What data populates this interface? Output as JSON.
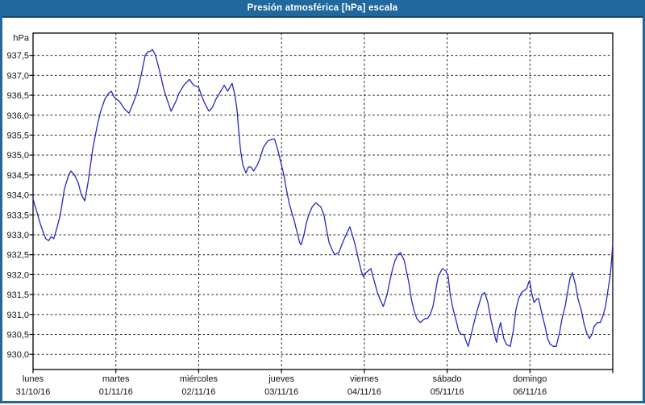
{
  "window": {
    "title": "Presión atmosférica [hPa] escala"
  },
  "colors": {
    "titlebar_bg": "#20689E",
    "titlebar_underline": "#14466B",
    "window_border": "#20689E",
    "plot_bg": "#ffffff",
    "axis": "#000000",
    "grid": "#1c1c1c",
    "series_line": "#2626C3",
    "label_text": "#111111"
  },
  "chart_data": {
    "type": "line",
    "title": "Presión atmosférica [hPa] escala",
    "ylabel": "hPa",
    "grid": "dashed",
    "legend_position": "none",
    "y_axis": {
      "unit": "hPa",
      "tick_values": [
        937.5,
        937.0,
        936.5,
        936.0,
        935.5,
        935.0,
        934.5,
        934.0,
        933.5,
        933.0,
        932.5,
        932.0,
        931.5,
        931.0,
        930.5,
        930.0
      ],
      "tick_labels": [
        "937,5",
        "937,0",
        "936,5",
        "936,0",
        "935,5",
        "935,0",
        "934,5",
        "934,0",
        "933,5",
        "933,0",
        "932,5",
        "932,0",
        "931,5",
        "931,0",
        "930,5",
        "930,0"
      ],
      "ylim": [
        929.62,
        938.06
      ]
    },
    "x_axis": {
      "hours_total": 168,
      "day_tick_hours": [
        0,
        24,
        48,
        72,
        96,
        120,
        144,
        168
      ],
      "days": [
        {
          "name": "lunes",
          "date": "31/10/16"
        },
        {
          "name": "martes",
          "date": "01/11/16"
        },
        {
          "name": "miércoles",
          "date": "02/11/16"
        },
        {
          "name": "jueves",
          "date": "03/11/16"
        },
        {
          "name": "viernes",
          "date": "04/11/16"
        },
        {
          "name": "sábado",
          "date": "05/11/16"
        },
        {
          "name": "domingo",
          "date": "06/11/16"
        }
      ]
    },
    "series": [
      {
        "name": "Presión atmosférica",
        "color": "#2626C3",
        "points": [
          [
            0,
            933.9
          ],
          [
            1,
            933.6
          ],
          [
            2,
            933.3
          ],
          [
            3,
            933.05
          ],
          [
            3.7,
            932.9
          ],
          [
            4.5,
            932.85
          ],
          [
            5.2,
            932.95
          ],
          [
            6,
            932.9
          ],
          [
            7,
            933.2
          ],
          [
            7.9,
            933.5
          ],
          [
            9.1,
            934.15
          ],
          [
            10.3,
            934.5
          ],
          [
            11,
            934.6
          ],
          [
            12,
            934.5
          ],
          [
            13.1,
            934.3
          ],
          [
            14,
            934.0
          ],
          [
            15,
            933.85
          ],
          [
            16,
            934.35
          ],
          [
            17.3,
            935.15
          ],
          [
            18.5,
            935.7
          ],
          [
            19.6,
            936.1
          ],
          [
            20.8,
            936.4
          ],
          [
            21.9,
            936.55
          ],
          [
            22.7,
            936.6
          ],
          [
            23.5,
            936.45
          ],
          [
            24.2,
            936.4
          ],
          [
            25,
            936.35
          ],
          [
            26.6,
            936.15
          ],
          [
            27.8,
            936.05
          ],
          [
            29,
            936.3
          ],
          [
            30.1,
            936.55
          ],
          [
            31.3,
            937.0
          ],
          [
            32.5,
            937.5
          ],
          [
            33.4,
            937.6
          ],
          [
            34,
            937.6
          ],
          [
            34.6,
            937.65
          ],
          [
            35.5,
            937.5
          ],
          [
            36.4,
            937.2
          ],
          [
            37.1,
            936.95
          ],
          [
            37.9,
            936.65
          ],
          [
            38.8,
            936.4
          ],
          [
            40,
            936.1
          ],
          [
            41.4,
            936.35
          ],
          [
            42.3,
            936.55
          ],
          [
            43.7,
            936.75
          ],
          [
            45.3,
            936.9
          ],
          [
            46.5,
            936.75
          ],
          [
            48,
            936.7
          ],
          [
            49,
            936.45
          ],
          [
            50,
            936.25
          ],
          [
            51,
            936.1
          ],
          [
            52,
            936.2
          ],
          [
            53,
            936.4
          ],
          [
            54.4,
            936.6
          ],
          [
            55.4,
            936.75
          ],
          [
            56.4,
            936.6
          ],
          [
            57.7,
            936.8
          ],
          [
            58.5,
            936.5
          ],
          [
            59.1,
            936.15
          ],
          [
            59.6,
            935.6
          ],
          [
            60.1,
            935.15
          ],
          [
            60.8,
            934.75
          ],
          [
            61.7,
            934.55
          ],
          [
            62.4,
            934.7
          ],
          [
            63.1,
            934.7
          ],
          [
            63.9,
            934.6
          ],
          [
            65,
            934.75
          ],
          [
            65.7,
            934.9
          ],
          [
            66.8,
            935.2
          ],
          [
            68,
            935.35
          ],
          [
            69.2,
            935.4
          ],
          [
            70,
            935.4
          ],
          [
            71,
            935.1
          ],
          [
            72,
            934.75
          ],
          [
            72.7,
            934.5
          ],
          [
            73.4,
            934.15
          ],
          [
            74.2,
            933.8
          ],
          [
            75,
            933.55
          ],
          [
            75.7,
            933.35
          ],
          [
            76.4,
            933.1
          ],
          [
            77.3,
            932.8
          ],
          [
            77.7,
            932.75
          ],
          [
            78.5,
            933.0
          ],
          [
            79.2,
            933.3
          ],
          [
            79.9,
            933.5
          ],
          [
            80.9,
            933.7
          ],
          [
            81.9,
            933.8
          ],
          [
            83.4,
            933.7
          ],
          [
            84.3,
            933.5
          ],
          [
            85,
            933.15
          ],
          [
            85.8,
            932.8
          ],
          [
            86.8,
            932.6
          ],
          [
            87.4,
            932.5
          ],
          [
            88.6,
            932.55
          ],
          [
            89.7,
            932.8
          ],
          [
            90.7,
            933.0
          ],
          [
            91.8,
            933.2
          ],
          [
            93.2,
            932.8
          ],
          [
            94.4,
            932.35
          ],
          [
            95.1,
            932.1
          ],
          [
            95.7,
            931.95
          ],
          [
            96.5,
            932.05
          ],
          [
            97.9,
            932.15
          ],
          [
            99,
            931.8
          ],
          [
            99.8,
            931.55
          ],
          [
            100.7,
            931.35
          ],
          [
            101.5,
            931.2
          ],
          [
            102.6,
            931.5
          ],
          [
            103.3,
            931.8
          ],
          [
            104.2,
            932.15
          ],
          [
            104.9,
            932.35
          ],
          [
            105.7,
            932.5
          ],
          [
            106.5,
            932.55
          ],
          [
            107.6,
            932.35
          ],
          [
            108.9,
            931.8
          ],
          [
            109.6,
            931.4
          ],
          [
            110.4,
            931.1
          ],
          [
            111.2,
            930.9
          ],
          [
            112.2,
            930.8
          ],
          [
            113.6,
            930.9
          ],
          [
            114.3,
            930.9
          ],
          [
            115.1,
            931.0
          ],
          [
            115.9,
            931.2
          ],
          [
            116.6,
            931.55
          ],
          [
            117.4,
            931.95
          ],
          [
            118,
            932.05
          ],
          [
            118.6,
            932.15
          ],
          [
            119.6,
            932.1
          ],
          [
            120.3,
            931.95
          ],
          [
            120.9,
            931.5
          ],
          [
            121.7,
            931.15
          ],
          [
            122.6,
            930.85
          ],
          [
            123.3,
            930.6
          ],
          [
            124.1,
            930.5
          ],
          [
            124.9,
            930.5
          ],
          [
            125.4,
            930.35
          ],
          [
            126.1,
            930.2
          ],
          [
            126.7,
            930.4
          ],
          [
            127.8,
            930.8
          ],
          [
            128.7,
            931.1
          ],
          [
            129.4,
            931.3
          ],
          [
            130.1,
            931.5
          ],
          [
            130.9,
            931.55
          ],
          [
            131.8,
            931.3
          ],
          [
            132.5,
            930.95
          ],
          [
            133.4,
            930.6
          ],
          [
            134.3,
            930.3
          ],
          [
            134.9,
            930.6
          ],
          [
            135.5,
            930.8
          ],
          [
            136.4,
            930.4
          ],
          [
            137.2,
            930.25
          ],
          [
            138.3,
            930.2
          ],
          [
            139.2,
            930.6
          ],
          [
            139.9,
            931.1
          ],
          [
            140.7,
            931.4
          ],
          [
            141.6,
            931.55
          ],
          [
            142.3,
            931.6
          ],
          [
            143.1,
            931.65
          ],
          [
            143.6,
            931.8
          ],
          [
            143.9,
            931.85
          ],
          [
            144.6,
            931.5
          ],
          [
            145.2,
            931.3
          ],
          [
            146.1,
            931.4
          ],
          [
            146.5,
            931.4
          ],
          [
            147.5,
            931.0
          ],
          [
            148.4,
            930.7
          ],
          [
            149.1,
            930.4
          ],
          [
            149.9,
            930.25
          ],
          [
            150.8,
            930.2
          ],
          [
            151.6,
            930.2
          ],
          [
            152.6,
            930.55
          ],
          [
            153.3,
            930.9
          ],
          [
            154.2,
            931.2
          ],
          [
            154.9,
            931.55
          ],
          [
            155.6,
            931.9
          ],
          [
            156.3,
            932.05
          ],
          [
            157.2,
            931.75
          ],
          [
            157.9,
            931.4
          ],
          [
            158.9,
            931.1
          ],
          [
            159.6,
            930.8
          ],
          [
            160.4,
            930.55
          ],
          [
            161.2,
            930.4
          ],
          [
            162,
            930.5
          ],
          [
            162.6,
            930.7
          ],
          [
            163.6,
            930.8
          ],
          [
            164.4,
            930.8
          ],
          [
            165.1,
            930.95
          ],
          [
            165.9,
            931.2
          ],
          [
            166.6,
            931.6
          ],
          [
            167.3,
            932.0
          ],
          [
            167.7,
            932.4
          ],
          [
            168,
            932.8
          ]
        ]
      }
    ]
  }
}
